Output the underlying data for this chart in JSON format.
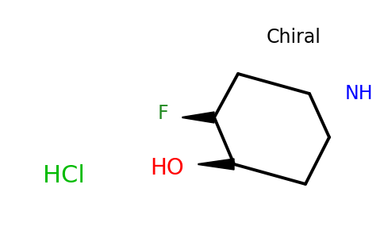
{
  "background_color": "#ffffff",
  "chiral_label": "Chiral",
  "chiral_color": "#000000",
  "chiral_fontsize": 17,
  "NH_label": "NH",
  "NH_color": "#0000ff",
  "NH_fontsize": 17,
  "F_label": "F",
  "F_color": "#228B22",
  "F_fontsize": 17,
  "HO_label": "HO",
  "HO_color": "#ff0000",
  "HO_fontsize": 20,
  "HCl_label": "HCl",
  "HCl_color": "#00bb00",
  "HCl_fontsize": 22,
  "ring_color": "#000000",
  "ring_linewidth": 2.8,
  "figsize": [
    4.84,
    3.0
  ],
  "dpi": 100
}
